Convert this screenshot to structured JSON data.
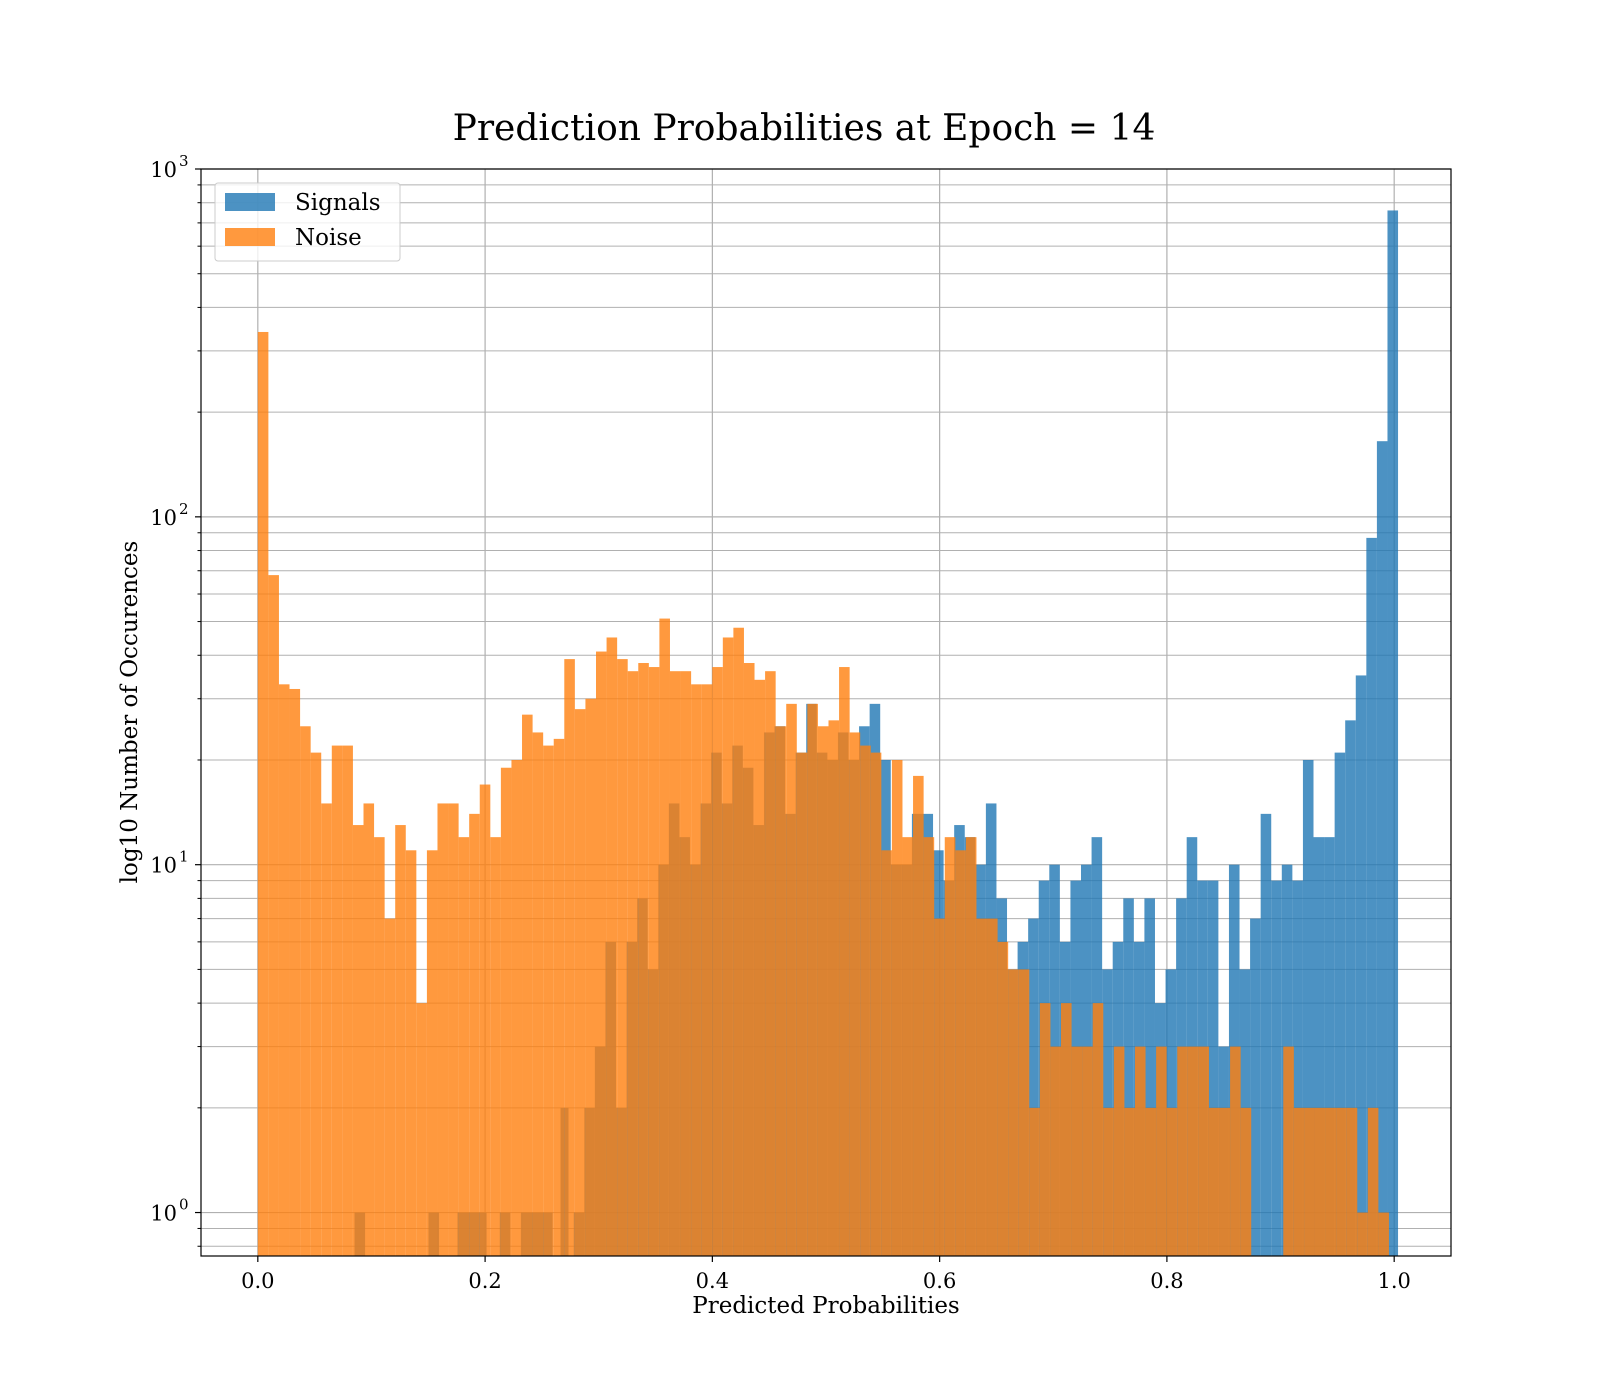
{
  "chart_data": {
    "type": "bar",
    "title": "Prediction Probabilities at Epoch = 14",
    "xlabel": "Predicted Probabilities",
    "ylabel": "log10 Number of Occurences",
    "yscale": "log",
    "xlim": [
      -0.05,
      1.05
    ],
    "ylim": [
      0.75,
      1000
    ],
    "xticks": [
      0.0,
      0.2,
      0.4,
      0.6,
      0.8,
      1.0
    ],
    "xtick_labels": [
      "0.0",
      "0.2",
      "0.4",
      "0.6",
      "0.8",
      "1.0"
    ],
    "yticks": [
      1,
      10,
      100,
      1000
    ],
    "ytick_labels": [
      {
        "base": "10",
        "exp": "0"
      },
      {
        "base": "10",
        "exp": "1"
      },
      {
        "base": "10",
        "exp": "2"
      },
      {
        "base": "10",
        "exp": "3"
      }
    ],
    "grid": true,
    "legend_position": "top-left",
    "series": [
      {
        "name": "Signals",
        "color": "#1f77b4",
        "opacity": 0.8,
        "bins": [
          [
            0.0851,
            0.0944,
            1
          ],
          [
            0.1502,
            0.1595,
            1
          ],
          [
            0.1757,
            0.2013,
            1
          ],
          [
            0.2129,
            0.2222,
            1
          ],
          [
            0.2315,
            0.2594,
            1
          ],
          [
            0.2664,
            0.2734,
            2
          ],
          [
            0.278,
            0.2873,
            1
          ],
          [
            0.2873,
            0.2966,
            2
          ],
          [
            0.2966,
            0.3059,
            3
          ],
          [
            0.3059,
            0.3152,
            6
          ],
          [
            0.3152,
            0.3245,
            2
          ],
          [
            0.3245,
            0.3338,
            6
          ],
          [
            0.3338,
            0.3431,
            8
          ],
          [
            0.3431,
            0.3524,
            5
          ],
          [
            0.3524,
            0.3617,
            10
          ],
          [
            0.3617,
            0.371,
            15
          ],
          [
            0.371,
            0.3803,
            12
          ],
          [
            0.3803,
            0.3896,
            10
          ],
          [
            0.3896,
            0.3989,
            15
          ],
          [
            0.3989,
            0.4082,
            21
          ],
          [
            0.4082,
            0.4175,
            15
          ],
          [
            0.4175,
            0.4268,
            22
          ],
          [
            0.4268,
            0.4361,
            19
          ],
          [
            0.4361,
            0.4454,
            13
          ],
          [
            0.4454,
            0.4547,
            24
          ],
          [
            0.4547,
            0.464,
            25
          ],
          [
            0.464,
            0.4733,
            14
          ],
          [
            0.4733,
            0.4826,
            21
          ],
          [
            0.4826,
            0.4919,
            29
          ],
          [
            0.4919,
            0.5012,
            21
          ],
          [
            0.5012,
            0.5105,
            20
          ],
          [
            0.5105,
            0.5198,
            24
          ],
          [
            0.5198,
            0.5291,
            20
          ],
          [
            0.5291,
            0.5384,
            25
          ],
          [
            0.5384,
            0.5477,
            29
          ],
          [
            0.5477,
            0.557,
            20
          ],
          [
            0.557,
            0.5663,
            10
          ],
          [
            0.5663,
            0.5756,
            10
          ],
          [
            0.5756,
            0.5849,
            14
          ],
          [
            0.5849,
            0.5942,
            14
          ],
          [
            0.5942,
            0.6035,
            11
          ],
          [
            0.6035,
            0.6128,
            9
          ],
          [
            0.6128,
            0.6221,
            13
          ],
          [
            0.6221,
            0.6314,
            12
          ],
          [
            0.6314,
            0.6407,
            10
          ],
          [
            0.6407,
            0.65,
            15
          ],
          [
            0.65,
            0.6593,
            8
          ],
          [
            0.6593,
            0.6686,
            5
          ],
          [
            0.6686,
            0.6779,
            6
          ],
          [
            0.6779,
            0.6872,
            7
          ],
          [
            0.6872,
            0.6965,
            9
          ],
          [
            0.6965,
            0.7058,
            10
          ],
          [
            0.7058,
            0.7151,
            6
          ],
          [
            0.7151,
            0.7244,
            9
          ],
          [
            0.7244,
            0.7337,
            10
          ],
          [
            0.7337,
            0.743,
            12
          ],
          [
            0.743,
            0.7523,
            5
          ],
          [
            0.7523,
            0.7616,
            6
          ],
          [
            0.7616,
            0.7709,
            8
          ],
          [
            0.7709,
            0.7802,
            6
          ],
          [
            0.7802,
            0.7895,
            8
          ],
          [
            0.7895,
            0.7988,
            4
          ],
          [
            0.7988,
            0.8081,
            5
          ],
          [
            0.8081,
            0.8174,
            8
          ],
          [
            0.8174,
            0.8267,
            12
          ],
          [
            0.8267,
            0.836,
            9
          ],
          [
            0.836,
            0.8453,
            9
          ],
          [
            0.8453,
            0.8546,
            3
          ],
          [
            0.8546,
            0.8639,
            10
          ],
          [
            0.8639,
            0.8732,
            5
          ],
          [
            0.8732,
            0.8825,
            7
          ],
          [
            0.8825,
            0.8918,
            14
          ],
          [
            0.8918,
            0.9011,
            9
          ],
          [
            0.9011,
            0.9104,
            10
          ],
          [
            0.9104,
            0.9197,
            9
          ],
          [
            0.9197,
            0.929,
            20
          ],
          [
            0.929,
            0.9383,
            12
          ],
          [
            0.9383,
            0.9476,
            12
          ],
          [
            0.9476,
            0.9569,
            21
          ],
          [
            0.9569,
            0.9662,
            26
          ],
          [
            0.9662,
            0.9755,
            35
          ],
          [
            0.9755,
            0.9848,
            87
          ],
          [
            0.9848,
            0.9941,
            165
          ],
          [
            0.9941,
            1.0034,
            760
          ]
        ]
      },
      {
        "name": "Noise",
        "color": "#ff7f0e",
        "opacity": 0.8,
        "bins": [
          [
            0.0,
            0.0093,
            340
          ],
          [
            0.0093,
            0.0186,
            68
          ],
          [
            0.0186,
            0.0279,
            33
          ],
          [
            0.0279,
            0.0372,
            32
          ],
          [
            0.0372,
            0.0465,
            25
          ],
          [
            0.0465,
            0.0558,
            21
          ],
          [
            0.0558,
            0.0651,
            15
          ],
          [
            0.0651,
            0.0744,
            22
          ],
          [
            0.0744,
            0.0837,
            22
          ],
          [
            0.0837,
            0.093,
            13
          ],
          [
            0.093,
            0.1023,
            15
          ],
          [
            0.1023,
            0.1116,
            12
          ],
          [
            0.1116,
            0.1209,
            7
          ],
          [
            0.1209,
            0.1302,
            13
          ],
          [
            0.1302,
            0.1395,
            11
          ],
          [
            0.1395,
            0.1488,
            4
          ],
          [
            0.1488,
            0.1581,
            11
          ],
          [
            0.1581,
            0.1674,
            15
          ],
          [
            0.1674,
            0.1767,
            15
          ],
          [
            0.1767,
            0.186,
            12
          ],
          [
            0.186,
            0.1953,
            14
          ],
          [
            0.1953,
            0.2046,
            17
          ],
          [
            0.2046,
            0.2139,
            12
          ],
          [
            0.2139,
            0.2232,
            19
          ],
          [
            0.2232,
            0.2325,
            20
          ],
          [
            0.2325,
            0.2418,
            27
          ],
          [
            0.2418,
            0.2511,
            24
          ],
          [
            0.2511,
            0.2604,
            22
          ],
          [
            0.2604,
            0.2697,
            23
          ],
          [
            0.2697,
            0.279,
            39
          ],
          [
            0.279,
            0.2883,
            28
          ],
          [
            0.2883,
            0.2976,
            30
          ],
          [
            0.2976,
            0.3069,
            41
          ],
          [
            0.3069,
            0.3162,
            45
          ],
          [
            0.3162,
            0.3255,
            39
          ],
          [
            0.3255,
            0.3348,
            36
          ],
          [
            0.3348,
            0.3441,
            38
          ],
          [
            0.3441,
            0.3534,
            37
          ],
          [
            0.3534,
            0.3627,
            51
          ],
          [
            0.3627,
            0.372,
            36
          ],
          [
            0.372,
            0.3813,
            36
          ],
          [
            0.3813,
            0.3906,
            33
          ],
          [
            0.3906,
            0.3999,
            33
          ],
          [
            0.3999,
            0.4092,
            37
          ],
          [
            0.4092,
            0.4185,
            45
          ],
          [
            0.4185,
            0.4278,
            48
          ],
          [
            0.4278,
            0.4371,
            38
          ],
          [
            0.4371,
            0.4464,
            34
          ],
          [
            0.4464,
            0.4557,
            36
          ],
          [
            0.4557,
            0.465,
            25
          ],
          [
            0.465,
            0.4743,
            29
          ],
          [
            0.4743,
            0.4836,
            21
          ],
          [
            0.4836,
            0.4929,
            29
          ],
          [
            0.4929,
            0.5022,
            25
          ],
          [
            0.5022,
            0.5115,
            26
          ],
          [
            0.5115,
            0.5208,
            37
          ],
          [
            0.5208,
            0.5301,
            24
          ],
          [
            0.5301,
            0.5394,
            22
          ],
          [
            0.5394,
            0.5487,
            21
          ],
          [
            0.5487,
            0.558,
            11
          ],
          [
            0.558,
            0.5673,
            20
          ],
          [
            0.5673,
            0.5766,
            12
          ],
          [
            0.5766,
            0.5859,
            18
          ],
          [
            0.5859,
            0.5952,
            12
          ],
          [
            0.5952,
            0.6045,
            7
          ],
          [
            0.6045,
            0.6138,
            12
          ],
          [
            0.6138,
            0.6231,
            11
          ],
          [
            0.6231,
            0.6324,
            12
          ],
          [
            0.6324,
            0.6417,
            7
          ],
          [
            0.6417,
            0.651,
            7
          ],
          [
            0.651,
            0.6603,
            6
          ],
          [
            0.6603,
            0.6696,
            5
          ],
          [
            0.6696,
            0.6789,
            5
          ],
          [
            0.6789,
            0.6882,
            2
          ],
          [
            0.6882,
            0.6975,
            4
          ],
          [
            0.6975,
            0.7068,
            3
          ],
          [
            0.7068,
            0.7161,
            4
          ],
          [
            0.7161,
            0.7254,
            3
          ],
          [
            0.7254,
            0.7347,
            3
          ],
          [
            0.7347,
            0.744,
            4
          ],
          [
            0.744,
            0.7533,
            2
          ],
          [
            0.7533,
            0.7626,
            3
          ],
          [
            0.7626,
            0.7719,
            2
          ],
          [
            0.7719,
            0.7812,
            3
          ],
          [
            0.7812,
            0.7905,
            2
          ],
          [
            0.7905,
            0.7998,
            3
          ],
          [
            0.7998,
            0.8091,
            2
          ],
          [
            0.8091,
            0.8184,
            3
          ],
          [
            0.8184,
            0.8277,
            3
          ],
          [
            0.8277,
            0.837,
            3
          ],
          [
            0.837,
            0.8463,
            2
          ],
          [
            0.8463,
            0.8556,
            2
          ],
          [
            0.8556,
            0.8649,
            3
          ],
          [
            0.8649,
            0.8742,
            2
          ],
          [
            0.9024,
            0.9117,
            3
          ],
          [
            0.9117,
            0.921,
            2
          ],
          [
            0.921,
            0.9303,
            2
          ],
          [
            0.9303,
            0.9396,
            2
          ],
          [
            0.9396,
            0.9489,
            2
          ],
          [
            0.9489,
            0.9582,
            2
          ],
          [
            0.9582,
            0.9675,
            2
          ],
          [
            0.9675,
            0.9768,
            1
          ],
          [
            0.9768,
            0.9861,
            2
          ],
          [
            0.9861,
            0.9954,
            1
          ]
        ]
      }
    ]
  }
}
